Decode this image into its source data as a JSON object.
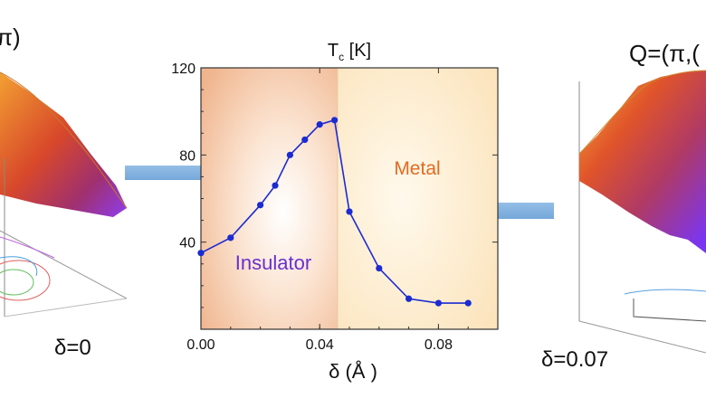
{
  "left_panel": {
    "title": "π)",
    "delta_label": "δ=0"
  },
  "right_panel": {
    "title": "Q=(π,(",
    "delta_label": "δ=0.07"
  },
  "colors": {
    "insulator_region": "#f3c9a8",
    "metal_region": "#fbe8c6",
    "curve": "#1b2bd1",
    "insulator_text": "#6a2fd0",
    "metal_text": "#e26a22",
    "arrow": "#7fb2de"
  },
  "chart_data": {
    "type": "line",
    "title": "T",
    "title_sub": "c",
    "title_unit": " [K]",
    "xlabel": "δ (Å )",
    "ylabel": "",
    "xlim": [
      0.0,
      0.1
    ],
    "ylim": [
      0,
      120
    ],
    "x_ticks": [
      0.0,
      0.04,
      0.08
    ],
    "x_tick_labels": [
      "0.00",
      "0.04",
      "0.08"
    ],
    "y_ticks": [
      40,
      80,
      120
    ],
    "y_tick_labels": [
      "40",
      "80",
      "120"
    ],
    "boundary_x": 0.046,
    "regions": [
      {
        "name": "Insulator",
        "from": 0.0,
        "to": 0.046
      },
      {
        "name": "Metal",
        "from": 0.046,
        "to": 0.1
      }
    ],
    "series": [
      {
        "x": [
          0.0,
          0.01,
          0.02,
          0.025,
          0.03,
          0.035,
          0.04,
          0.045,
          0.05,
          0.06,
          0.07,
          0.08,
          0.09
        ],
        "y": [
          35,
          42,
          57,
          66,
          80,
          87,
          94,
          96,
          54,
          28,
          14,
          12,
          12
        ]
      }
    ],
    "annotations": [
      "Insulator",
      "Metal"
    ]
  }
}
